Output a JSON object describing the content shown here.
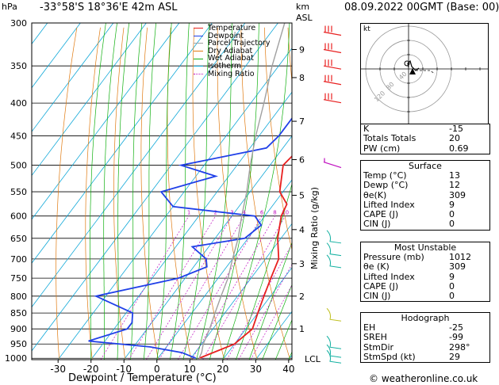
{
  "header": {
    "left_unit": "hPa",
    "location": "-33°58'S  18°36'E  42m  ASL",
    "km_label": "km",
    "asl_label": "ASL",
    "datetime": "08.09.2022  00GMT  (Base: 00)"
  },
  "footer": {
    "copyright": "© weatheronline.co.uk"
  },
  "chart_data": {
    "type": "line",
    "xlabel": "Dewpoint / Temperature (°C)",
    "ylabel_left": "hPa",
    "ylabel_right": "Mixing Ratio (g/kg)",
    "x_ticks": [
      -30,
      -20,
      -10,
      0,
      10,
      20,
      30,
      40
    ],
    "xlim": [
      -38,
      41
    ],
    "pressure_levels": [
      300,
      350,
      400,
      450,
      500,
      550,
      600,
      650,
      700,
      750,
      800,
      850,
      900,
      950,
      1000
    ],
    "ylim": [
      300,
      1005
    ],
    "km_ticks": [
      {
        "km": "9",
        "p": 330
      },
      {
        "km": "8",
        "p": 365
      },
      {
        "km": "7",
        "p": 427
      },
      {
        "km": "6",
        "p": 490
      },
      {
        "km": "5",
        "p": 557
      },
      {
        "km": "4",
        "p": 630
      },
      {
        "km": "3",
        "p": 712
      },
      {
        "km": "2",
        "p": 800
      },
      {
        "km": "1",
        "p": 900
      }
    ],
    "lcl_label": "LCL",
    "mixing_ratio_labels": [
      "1",
      "2",
      "3",
      "4",
      "6",
      "8",
      "10",
      "16",
      "20",
      "25"
    ],
    "legend": [
      {
        "name": "Temperature",
        "color": "#e82020"
      },
      {
        "name": "Dewpoint",
        "color": "#2040e8"
      },
      {
        "name": "Parcel Trajectory",
        "color": "#a0a0a0"
      },
      {
        "name": "Dry Adiabat",
        "color": "#e07a10"
      },
      {
        "name": "Wet Adiabat",
        "color": "#10b010"
      },
      {
        "name": "Isotherm",
        "color": "#10a8d8"
      },
      {
        "name": "Mixing Ratio",
        "color": "#c010c0"
      }
    ],
    "series": [
      {
        "name": "Temperature",
        "color": "#e82020",
        "points": [
          [
            12.5,
            1000
          ],
          [
            17,
            970
          ],
          [
            20,
            950
          ],
          [
            22,
            900
          ],
          [
            20,
            850
          ],
          [
            18,
            800
          ],
          [
            16,
            750
          ],
          [
            14,
            700
          ],
          [
            9,
            650
          ],
          [
            5,
            600
          ],
          [
            4,
            575
          ],
          [
            -1,
            550
          ],
          [
            -6,
            500
          ],
          [
            -5,
            475
          ],
          [
            -8,
            450
          ],
          [
            -13,
            400
          ],
          [
            -17,
            350
          ],
          [
            -22,
            300
          ]
        ]
      },
      {
        "name": "Dewpoint",
        "color": "#2040e8",
        "points": [
          [
            11.5,
            1000
          ],
          [
            6,
            980
          ],
          [
            -5,
            960
          ],
          [
            -25,
            940
          ],
          [
            -16,
            900
          ],
          [
            -16,
            880
          ],
          [
            -18,
            850
          ],
          [
            -33,
            800
          ],
          [
            -12,
            750
          ],
          [
            -6,
            720
          ],
          [
            -8,
            700
          ],
          [
            -15,
            670
          ],
          [
            -1,
            650
          ],
          [
            1,
            620
          ],
          [
            -3,
            600
          ],
          [
            -30,
            580
          ],
          [
            -37,
            550
          ],
          [
            -24,
            520
          ],
          [
            -37,
            500
          ],
          [
            -15,
            470
          ],
          [
            -14,
            450
          ],
          [
            -14,
            400
          ],
          [
            -15,
            380
          ],
          [
            -16,
            350
          ],
          [
            -20,
            330
          ],
          [
            -24,
            300
          ]
        ]
      },
      {
        "name": "Parcel Trajectory",
        "color": "#a0a0a0",
        "points": [
          [
            12.5,
            1000
          ],
          [
            12,
            980
          ],
          [
            10.5,
            950
          ],
          [
            9,
            900
          ],
          [
            7,
            850
          ],
          [
            5,
            800
          ],
          [
            3,
            750
          ],
          [
            0,
            700
          ],
          [
            -3,
            650
          ],
          [
            -7,
            600
          ],
          [
            -11,
            550
          ],
          [
            -16,
            500
          ],
          [
            -21,
            450
          ],
          [
            -26,
            400
          ],
          [
            -32,
            350
          ],
          [
            -38,
            300
          ]
        ]
      }
    ]
  },
  "hodograph": {
    "unit_label": "kt",
    "ring_labels": [
      "120",
      "80",
      "40"
    ]
  },
  "indices": {
    "rows": [
      {
        "label": "K",
        "value": "-15"
      },
      {
        "label": "Totals Totals",
        "value": "20"
      },
      {
        "label": "PW (cm)",
        "value": "0.69"
      }
    ]
  },
  "surface": {
    "title": "Surface",
    "rows": [
      {
        "label": "Temp (°C)",
        "value": "13"
      },
      {
        "label": "Dewp (°C)",
        "value": "12"
      },
      {
        "label": "θe(K)",
        "value": "309"
      },
      {
        "label": "Lifted Index",
        "value": "9"
      },
      {
        "label": "CAPE (J)",
        "value": "0"
      },
      {
        "label": "CIN (J)",
        "value": "0"
      }
    ]
  },
  "most_unstable": {
    "title": "Most Unstable",
    "rows": [
      {
        "label": "Pressure (mb)",
        "value": "1012"
      },
      {
        "label": "θe (K)",
        "value": "309"
      },
      {
        "label": "Lifted Index",
        "value": "9"
      },
      {
        "label": "CAPE (J)",
        "value": "0"
      },
      {
        "label": "CIN (J)",
        "value": "0"
      }
    ]
  },
  "hodo_stats": {
    "title": "Hodograph",
    "rows": [
      {
        "label": "EH",
        "value": "-25"
      },
      {
        "label": "SREH",
        "value": "-99"
      },
      {
        "label": "StmDir",
        "value": "298°"
      },
      {
        "label": "StmSpd (kt)",
        "value": "29"
      }
    ]
  }
}
